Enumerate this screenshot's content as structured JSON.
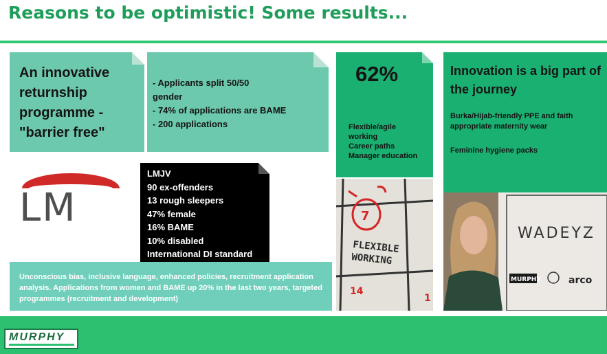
{
  "slide": {
    "title": "Reasons to be optimistic! Some results..."
  },
  "box_returnship": {
    "lines": [
      "An innovative",
      "returnship",
      "programme -",
      "\"barrier free\""
    ]
  },
  "box_applicants": {
    "items": [
      "- Applicants split 50/50",
      "gender",
      "- 74% of applications are BAME",
      "- 200 applications"
    ]
  },
  "box_flexible": {
    "percent": "62%",
    "items": [
      "Flexible/agile",
      "working",
      "Career paths",
      "Manager education"
    ]
  },
  "box_innovation": {
    "heading": "Innovation is a big part of the journey",
    "point1": "Burka/Hijab-friendly PPE and faith appropriate maternity wear",
    "point2": "Feminine hygiene packs"
  },
  "box_lmjv": {
    "items": [
      "LMJV",
      "90 ex-offenders",
      "13 rough sleepers",
      "47% female",
      "16% BAME",
      "10% disabled",
      "International DI standard"
    ]
  },
  "box_bias": {
    "text": "Unconscious bias, inclusive language, enhanced policies, recruitment application analysis. Applications from women and BAME up 20% in the last two years, targeted programmes (recruitment and development)"
  },
  "logo_lm": {
    "text": "LM"
  },
  "calendar_photo": {
    "circled_day": "7",
    "caption": [
      "FLEXIBLE",
      "WORKING"
    ],
    "day_14": "14",
    "day_1": "1"
  },
  "woman_photo": {
    "sign_text": "WADEYZ",
    "brand_1": "MURPHY",
    "brand_2": "arco"
  },
  "footer": {
    "brand": "MURPHY"
  },
  "colors": {
    "title_green": "#1e9d5a",
    "teal": "#6dc9ad",
    "green": "#1ab072",
    "footer_green": "#2cc170",
    "lm_red": "#cf2a27"
  }
}
